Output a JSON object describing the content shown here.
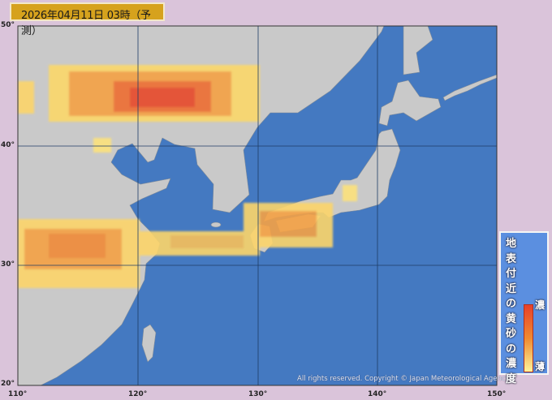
{
  "title": "2026年04月11日 03時（予測）",
  "axes": {
    "lat_labels": [
      "50°",
      "40°",
      "30°",
      "20°"
    ],
    "lon_labels": [
      "110°",
      "120°",
      "130°",
      "140°",
      "150°"
    ]
  },
  "legend": {
    "title": "地表付近の黄砂の濃度",
    "high_label": "濃",
    "low_label": "薄",
    "gradient_colors": [
      "#e8402a",
      "#f08a30",
      "#fff49a"
    ]
  },
  "copyright": "All rights reserved. Copyright © Japan Meteorological Agency",
  "colors": {
    "ocean": "#4479c1",
    "land": "#c9c9c9",
    "grid": "#1f3d66",
    "background": "#dac4da"
  }
}
